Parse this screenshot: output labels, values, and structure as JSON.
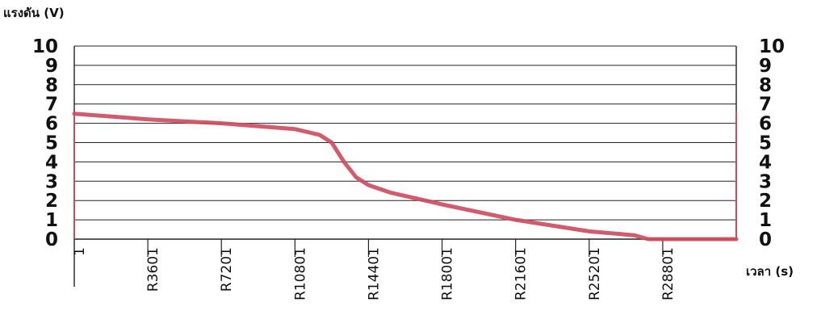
{
  "chart_data": {
    "type": "line",
    "ylabel": "แรงดัน (V)",
    "xlabel": "เวลา (s)",
    "ylim": [
      0,
      10
    ],
    "y_ticks": [
      "0",
      "1",
      "2",
      "3",
      "4",
      "5",
      "6",
      "7",
      "8",
      "9",
      "10"
    ],
    "categories": [
      "1",
      "R3601",
      "R7201",
      "R10801",
      "R14401",
      "R18001",
      "R21601",
      "R25201",
      "R28801"
    ],
    "x_index_range": [
      1,
      32400
    ],
    "grid": true,
    "colors": {
      "line": "#cc4a5e",
      "grid": "#222222"
    },
    "series": [
      {
        "x": [
          1,
          3601,
          7201,
          10801,
          12000,
          12600,
          13200,
          13800,
          14401,
          15500,
          18001,
          21601,
          25201,
          27400,
          28100,
          28801,
          32400
        ],
        "y": [
          6.5,
          6.2,
          6.0,
          5.7,
          5.4,
          5.0,
          4.0,
          3.2,
          2.8,
          2.4,
          1.8,
          1.0,
          0.4,
          0.2,
          0.0,
          0.0,
          0.0
        ]
      }
    ]
  }
}
